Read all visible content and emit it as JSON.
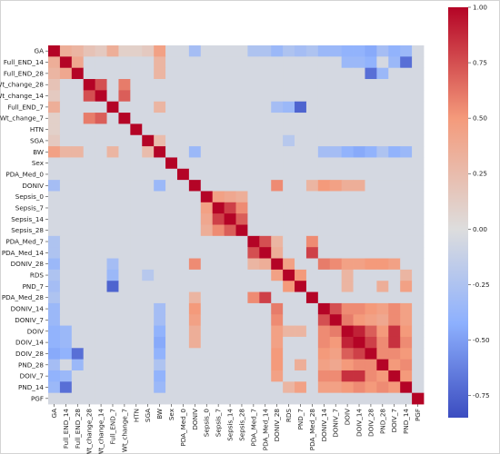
{
  "chart_data": {
    "type": "heatmap",
    "title": "",
    "xlabel": "",
    "ylabel": "",
    "variables": [
      "GA",
      "Full_END_14",
      "Full_END_28",
      "Wt_change_28",
      "Wt_change_14",
      "Full_END_7",
      "Wt_change_7",
      "HTN",
      "SGA",
      "BW",
      "Sex",
      "PDA_Med_0",
      "DONIV",
      "Sepsis_0",
      "Sepsis_7",
      "Sepsis_14",
      "Sepsis_28",
      "PDA_Med_7",
      "PDA_Med_14",
      "DONIV_28",
      "RDS",
      "PND_7",
      "PDA_Med_28",
      "DONIV_14",
      "DONIV_7",
      "DOIV",
      "DOIV_14",
      "DOIV_28",
      "PND_28",
      "DOIV_7",
      "PND_14",
      "PGF"
    ],
    "x_tick_labels": [
      "GA",
      "Full_END_14",
      "Full_END_28",
      "Wt_change_28",
      "Wt_change_14",
      "Full_END_7",
      "Wt_change_7",
      "HTN",
      "SGA",
      "BW",
      "Sex",
      "PDA_Med_0",
      "DONIV",
      "Sepsis_0",
      "Sepsis_7",
      "Sepsis_14",
      "Sepsis_28",
      "PDA_Med_7",
      "PDA_Med_14",
      "DONIV_28",
      "RDS",
      "PND_7",
      "PDA_Med_28",
      "DONIV_14",
      "DONIV_7",
      "DOIV",
      "DOIV_14",
      "DOIV_28",
      "PND_28",
      "DOIV_7",
      "PND_14",
      "PGF"
    ],
    "y_tick_labels": [
      "GA",
      "Full_END_14",
      "Full_END_28",
      "Wt_change_28",
      "Wt_change_14",
      "Full_END_7",
      "Wt_change_7",
      "HTN",
      "SGA",
      "BW",
      "Sex",
      "PDA_Med_0",
      "DONIV",
      "Sepsis_0",
      "Sepsis_7",
      "Sepsis_14",
      "Sepsis_28",
      "PDA_Med_7",
      "PDA_Med_14",
      "DONIV_28",
      "RDS",
      "PND_7",
      "PDA_Med_28",
      "DONIV_14",
      "DONIV_7",
      "DOIV",
      "DOIV_14",
      "DOIV_28",
      "PND_28",
      "DOIV_7",
      "PND_14",
      "PGF"
    ],
    "colorbar": {
      "min": -0.85,
      "max": 1.0,
      "colormap": "coolwarm",
      "ticks": [
        1.0,
        0.75,
        0.5,
        0.25,
        0.0,
        -0.25,
        -0.5,
        -0.75
      ],
      "tick_labels": [
        "1.00",
        "0.75",
        "0.50",
        "0.25",
        "0.00",
        "-0.25",
        "-0.50",
        "-0.75"
      ]
    },
    "correlations": [
      {
        "a": "GA",
        "b": "Full_END_14",
        "r": 0.35
      },
      {
        "a": "GA",
        "b": "Full_END_28",
        "r": 0.3
      },
      {
        "a": "GA",
        "b": "Wt_change_28",
        "r": 0.2
      },
      {
        "a": "GA",
        "b": "Wt_change_14",
        "r": 0.15
      },
      {
        "a": "GA",
        "b": "Full_END_7",
        "r": 0.35
      },
      {
        "a": "GA",
        "b": "Wt_change_7",
        "r": 0.1
      },
      {
        "a": "GA",
        "b": "HTN",
        "r": 0.1
      },
      {
        "a": "GA",
        "b": "SGA",
        "r": 0.15
      },
      {
        "a": "GA",
        "b": "BW",
        "r": 0.45
      },
      {
        "a": "GA",
        "b": "DONIV",
        "r": -0.3
      },
      {
        "a": "GA",
        "b": "DONIV_28",
        "r": -0.35
      },
      {
        "a": "GA",
        "b": "RDS",
        "r": -0.25
      },
      {
        "a": "GA",
        "b": "PND_7",
        "r": -0.3
      },
      {
        "a": "GA",
        "b": "PDA_Med_7",
        "r": -0.25
      },
      {
        "a": "GA",
        "b": "PDA_Med_14",
        "r": -0.25
      },
      {
        "a": "GA",
        "b": "PDA_Med_28",
        "r": -0.25
      },
      {
        "a": "GA",
        "b": "DONIV_14",
        "r": -0.35
      },
      {
        "a": "GA",
        "b": "DONIV_7",
        "r": -0.35
      },
      {
        "a": "GA",
        "b": "DOIV",
        "r": -0.4
      },
      {
        "a": "GA",
        "b": "DOIV_14",
        "r": -0.4
      },
      {
        "a": "GA",
        "b": "DOIV_28",
        "r": -0.45
      },
      {
        "a": "GA",
        "b": "PND_28",
        "r": -0.3
      },
      {
        "a": "GA",
        "b": "DOIV_7",
        "r": -0.4
      },
      {
        "a": "GA",
        "b": "PND_14",
        "r": -0.35
      },
      {
        "a": "Full_END_14",
        "b": "Full_END_28",
        "r": 0.4
      },
      {
        "a": "Full_END_14",
        "b": "BW",
        "r": 0.3
      },
      {
        "a": "Full_END_14",
        "b": "DOIV_28",
        "r": -0.4
      },
      {
        "a": "Full_END_14",
        "b": "PND_14",
        "r": -0.7
      },
      {
        "a": "Full_END_14",
        "b": "DOIV",
        "r": -0.35
      },
      {
        "a": "Full_END_14",
        "b": "DOIV_14",
        "r": -0.35
      },
      {
        "a": "Full_END_14",
        "b": "DOIV_7",
        "r": -0.35
      },
      {
        "a": "Full_END_28",
        "b": "DOIV_28",
        "r": -0.7
      },
      {
        "a": "Full_END_28",
        "b": "PND_28",
        "r": -0.35
      },
      {
        "a": "Full_END_28",
        "b": "BW",
        "r": 0.3
      },
      {
        "a": "Wt_change_28",
        "b": "Wt_change_14",
        "r": 0.75
      },
      {
        "a": "Wt_change_28",
        "b": "Wt_change_7",
        "r": 0.6
      },
      {
        "a": "Wt_change_14",
        "b": "Wt_change_7",
        "r": 0.7
      },
      {
        "a": "Full_END_7",
        "b": "PND_7",
        "r": -0.75
      },
      {
        "a": "Full_END_7",
        "b": "RDS",
        "r": -0.35
      },
      {
        "a": "Full_END_7",
        "b": "BW",
        "r": 0.3
      },
      {
        "a": "Full_END_7",
        "b": "DONIV_28",
        "r": -0.3
      },
      {
        "a": "SGA",
        "b": "BW",
        "r": 0.25
      },
      {
        "a": "SGA",
        "b": "RDS",
        "r": -0.2
      },
      {
        "a": "BW",
        "b": "DONIV",
        "r": -0.35
      },
      {
        "a": "BW",
        "b": "DOIV",
        "r": -0.4
      },
      {
        "a": "BW",
        "b": "DOIV_14",
        "r": -0.45
      },
      {
        "a": "BW",
        "b": "DOIV_28",
        "r": -0.4
      },
      {
        "a": "BW",
        "b": "DOIV_7",
        "r": -0.4
      },
      {
        "a": "BW",
        "b": "PND_14",
        "r": -0.35
      },
      {
        "a": "BW",
        "b": "DONIV_14",
        "r": -0.3
      },
      {
        "a": "BW",
        "b": "DONIV_7",
        "r": -0.3
      },
      {
        "a": "BW",
        "b": "PND_28",
        "r": -0.25
      },
      {
        "a": "DONIV",
        "b": "DONIV_28",
        "r": 0.55
      },
      {
        "a": "DONIV",
        "b": "DONIV_14",
        "r": 0.5
      },
      {
        "a": "DONIV",
        "b": "DONIV_7",
        "r": 0.45
      },
      {
        "a": "DONIV",
        "b": "DOIV",
        "r": 0.35
      },
      {
        "a": "DONIV",
        "b": "DOIV_14",
        "r": 0.35
      },
      {
        "a": "DONIV",
        "b": "PDA_Med_28",
        "r": 0.3
      },
      {
        "a": "Sepsis_0",
        "b": "Sepsis_7",
        "r": 0.45
      },
      {
        "a": "Sepsis_0",
        "b": "Sepsis_14",
        "r": 0.4
      },
      {
        "a": "Sepsis_0",
        "b": "Sepsis_28",
        "r": 0.35
      },
      {
        "a": "Sepsis_7",
        "b": "Sepsis_14",
        "r": 0.8
      },
      {
        "a": "Sepsis_7",
        "b": "Sepsis_28",
        "r": 0.55
      },
      {
        "a": "Sepsis_14",
        "b": "Sepsis_28",
        "r": 0.7
      },
      {
        "a": "PDA_Med_7",
        "b": "PDA_Med_14",
        "r": 0.75
      },
      {
        "a": "PDA_Med_7",
        "b": "PDA_Med_28",
        "r": 0.55
      },
      {
        "a": "PDA_Med_14",
        "b": "PDA_Med_28",
        "r": 0.8
      },
      {
        "a": "PDA_Med_7",
        "b": "DONIV_28",
        "r": 0.3
      },
      {
        "a": "PDA_Med_14",
        "b": "DONIV_28",
        "r": 0.35
      },
      {
        "a": "DONIV_28",
        "b": "DONIV_14",
        "r": 0.6
      },
      {
        "a": "DONIV_28",
        "b": "DONIV_7",
        "r": 0.55
      },
      {
        "a": "DONIV_28",
        "b": "DOIV_28",
        "r": 0.5
      },
      {
        "a": "DONIV_28",
        "b": "PND_28",
        "r": 0.5
      },
      {
        "a": "DONIV_28",
        "b": "DOIV",
        "r": 0.45
      },
      {
        "a": "DONIV_28",
        "b": "DOIV_14",
        "r": 0.45
      },
      {
        "a": "DONIV_28",
        "b": "DOIV_7",
        "r": 0.45
      },
      {
        "a": "DONIV_28",
        "b": "RDS",
        "r": 0.45
      },
      {
        "a": "RDS",
        "b": "PND_7",
        "r": 0.5
      },
      {
        "a": "RDS",
        "b": "DOIV",
        "r": 0.3
      },
      {
        "a": "RDS",
        "b": "PND_14",
        "r": 0.3
      },
      {
        "a": "PND_7",
        "b": "PND_14",
        "r": 0.45
      },
      {
        "a": "PND_7",
        "b": "PND_28",
        "r": 0.35
      },
      {
        "a": "PND_7",
        "b": "DOIV",
        "r": 0.3
      },
      {
        "a": "DONIV_14",
        "b": "DONIV_7",
        "r": 0.75
      },
      {
        "a": "DONIV_14",
        "b": "DOIV",
        "r": 0.55
      },
      {
        "a": "DONIV_14",
        "b": "DOIV_14",
        "r": 0.55
      },
      {
        "a": "DONIV_14",
        "b": "DOIV_28",
        "r": 0.5
      },
      {
        "a": "DONIV_14",
        "b": "DOIV_7",
        "r": 0.55
      },
      {
        "a": "DONIV_14",
        "b": "PND_14",
        "r": 0.45
      },
      {
        "a": "DONIV_14",
        "b": "PND_28",
        "r": 0.45
      },
      {
        "a": "DONIV_7",
        "b": "DOIV",
        "r": 0.6
      },
      {
        "a": "DONIV_7",
        "b": "DOIV_14",
        "r": 0.5
      },
      {
        "a": "DONIV_7",
        "b": "DOIV_7",
        "r": 0.55
      },
      {
        "a": "DONIV_7",
        "b": "DOIV_28",
        "r": 0.45
      },
      {
        "a": "DONIV_7",
        "b": "PND_14",
        "r": 0.45
      },
      {
        "a": "DONIV_7",
        "b": "PND_28",
        "r": 0.4
      },
      {
        "a": "DOIV",
        "b": "DOIV_14",
        "r": 0.9
      },
      {
        "a": "DOIV",
        "b": "DOIV_28",
        "r": 0.7
      },
      {
        "a": "DOIV",
        "b": "DOIV_7",
        "r": 0.85
      },
      {
        "a": "DOIV",
        "b": "PND_28",
        "r": 0.5
      },
      {
        "a": "DOIV",
        "b": "PND_14",
        "r": 0.5
      },
      {
        "a": "DOIV_14",
        "b": "DOIV_28",
        "r": 0.8
      },
      {
        "a": "DOIV_14",
        "b": "DOIV_7",
        "r": 0.85
      },
      {
        "a": "DOIV_14",
        "b": "PND_28",
        "r": 0.55
      },
      {
        "a": "DOIV_14",
        "b": "PND_14",
        "r": 0.55
      },
      {
        "a": "DOIV_28",
        "b": "PND_28",
        "r": 0.55
      },
      {
        "a": "DOIV_28",
        "b": "DOIV_7",
        "r": 0.55
      },
      {
        "a": "DOIV_28",
        "b": "PND_14",
        "r": 0.5
      },
      {
        "a": "PND_28",
        "b": "DOIV_7",
        "r": 0.5
      },
      {
        "a": "PND_28",
        "b": "PND_14",
        "r": 0.55
      },
      {
        "a": "DOIV_7",
        "b": "PND_14",
        "r": 0.5
      }
    ],
    "default_offdiagonal": -0.05
  }
}
